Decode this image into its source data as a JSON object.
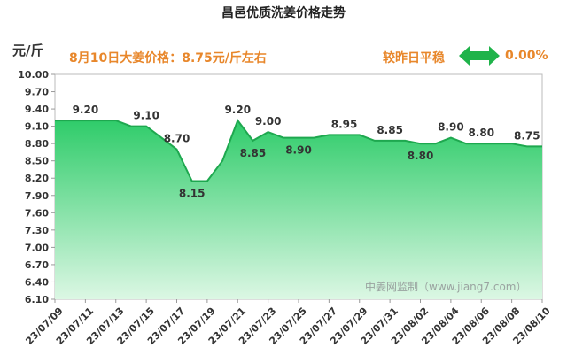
{
  "header": {
    "title": "昌邑优质洗姜价格走势",
    "unit": "元/斤",
    "info": "8月10日大姜价格：8.75元/斤左右",
    "status": "较昨日平稳",
    "change": "0.00%",
    "watermark": "中姜网监制（www.jiang7.com）"
  },
  "colors": {
    "fill_top": "#2fcc6a",
    "fill_bottom": "#dcf7e4",
    "line": "#1ea84f",
    "accent": "#e8872b",
    "arrow": "#1fb34a"
  },
  "chart_data": {
    "type": "area",
    "title": "昌邑优质洗姜价格走势",
    "ylabel": "元/斤",
    "ylim": [
      6.1,
      10.0
    ],
    "yticks": [
      "10.00",
      "9.70",
      "9.40",
      "9.10",
      "8.80",
      "8.50",
      "8.20",
      "7.90",
      "7.60",
      "7.30",
      "7.00",
      "6.70",
      "6.40",
      "6.10"
    ],
    "x": [
      "23/07/09",
      "23/07/10",
      "23/07/11",
      "23/07/12",
      "23/07/13",
      "23/07/14",
      "23/07/15",
      "23/07/16",
      "23/07/17",
      "23/07/18",
      "23/07/19",
      "23/07/20",
      "23/07/21",
      "23/07/22",
      "23/07/23",
      "23/07/24",
      "23/07/25",
      "23/07/26",
      "23/07/27",
      "23/07/28",
      "23/07/29",
      "23/07/30",
      "23/07/31",
      "23/08/01",
      "23/08/02",
      "23/08/03",
      "23/08/04",
      "23/08/05",
      "23/08/06",
      "23/08/07",
      "23/08/08",
      "23/08/09",
      "23/08/10"
    ],
    "xtick_labels": [
      "23/07/09",
      "23/07/11",
      "23/07/13",
      "23/07/15",
      "23/07/17",
      "23/07/19",
      "23/07/21",
      "23/07/23",
      "23/07/25",
      "23/07/27",
      "23/07/29",
      "23/07/31",
      "23/08/02",
      "23/08/04",
      "23/08/06",
      "23/08/08",
      "23/08/10"
    ],
    "values": [
      9.2,
      9.2,
      9.2,
      9.2,
      9.2,
      9.1,
      9.1,
      8.9,
      8.7,
      8.15,
      8.15,
      8.5,
      9.2,
      8.85,
      9.0,
      8.9,
      8.9,
      8.9,
      8.95,
      8.95,
      8.95,
      8.85,
      8.85,
      8.85,
      8.8,
      8.8,
      8.9,
      8.8,
      8.8,
      8.8,
      8.8,
      8.75,
      8.75
    ],
    "data_labels": [
      {
        "i": 2,
        "text": "9.20",
        "pos": "above"
      },
      {
        "i": 6,
        "text": "9.10",
        "pos": "above"
      },
      {
        "i": 8,
        "text": "8.70",
        "pos": "above"
      },
      {
        "i": 9,
        "text": "8.15",
        "pos": "below"
      },
      {
        "i": 12,
        "text": "9.20",
        "pos": "above"
      },
      {
        "i": 13,
        "text": "8.85",
        "pos": "below"
      },
      {
        "i": 14,
        "text": "9.00",
        "pos": "above"
      },
      {
        "i": 16,
        "text": "8.90",
        "pos": "below"
      },
      {
        "i": 19,
        "text": "8.95",
        "pos": "above"
      },
      {
        "i": 22,
        "text": "8.85",
        "pos": "above"
      },
      {
        "i": 24,
        "text": "8.80",
        "pos": "below"
      },
      {
        "i": 26,
        "text": "8.90",
        "pos": "above"
      },
      {
        "i": 28,
        "text": "8.80",
        "pos": "above"
      },
      {
        "i": 31,
        "text": "8.75",
        "pos": "above"
      }
    ],
    "grid": false
  }
}
